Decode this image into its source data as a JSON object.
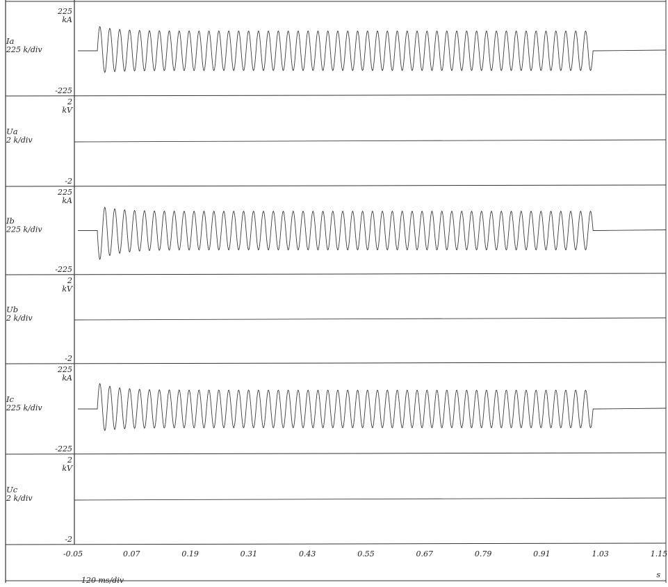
{
  "chart_data": {
    "type": "line",
    "title": "",
    "x_unit": "s",
    "time_scale": "120 ms/div",
    "xlim": [
      -0.05,
      1.15
    ],
    "x_ticks": [
      "-0.05",
      "0.07",
      "0.19",
      "0.31",
      "0.43",
      "0.55",
      "0.67",
      "0.79",
      "0.91",
      "1.03",
      "1.15"
    ],
    "grid": false,
    "line_color": "#3a3a3a",
    "series": [
      {
        "name": "Ia",
        "scale": "225 k/div",
        "top": "225",
        "bottom": "-225",
        "unit": "kA",
        "ylim": [
          -225,
          225
        ],
        "oscillation": {
          "start_s": 0.0,
          "end_s": 1.015,
          "cycles": 50,
          "amplitude": 105,
          "first_peak": 125
        }
      },
      {
        "name": "Ua",
        "scale": "2 k/div",
        "top": "2",
        "bottom": "-2",
        "unit": "kV",
        "ylim": [
          -2,
          2
        ],
        "oscillation": null
      },
      {
        "name": "Ib",
        "scale": "225 k/div",
        "top": "225",
        "bottom": "-225",
        "unit": "kA",
        "ylim": [
          -225,
          225
        ],
        "oscillation": {
          "start_s": 0.0,
          "end_s": 1.015,
          "cycles": 50,
          "amplitude": 105,
          "first_peak": -150
        }
      },
      {
        "name": "Ub",
        "scale": "2 k/div",
        "top": "2",
        "bottom": "-2",
        "unit": "kV",
        "ylim": [
          -2,
          2
        ],
        "oscillation": null
      },
      {
        "name": "Ic",
        "scale": "225 k/div",
        "top": "225",
        "bottom": "-225",
        "unit": "kA",
        "ylim": [
          -225,
          225
        ],
        "oscillation": {
          "start_s": 0.0,
          "end_s": 1.015,
          "cycles": 50,
          "amplitude": 100,
          "first_peak": 130
        }
      },
      {
        "name": "Uc",
        "scale": "2 k/div",
        "top": "2",
        "bottom": "-2",
        "unit": "kV",
        "ylim": [
          -2,
          2
        ],
        "oscillation": null
      }
    ]
  }
}
